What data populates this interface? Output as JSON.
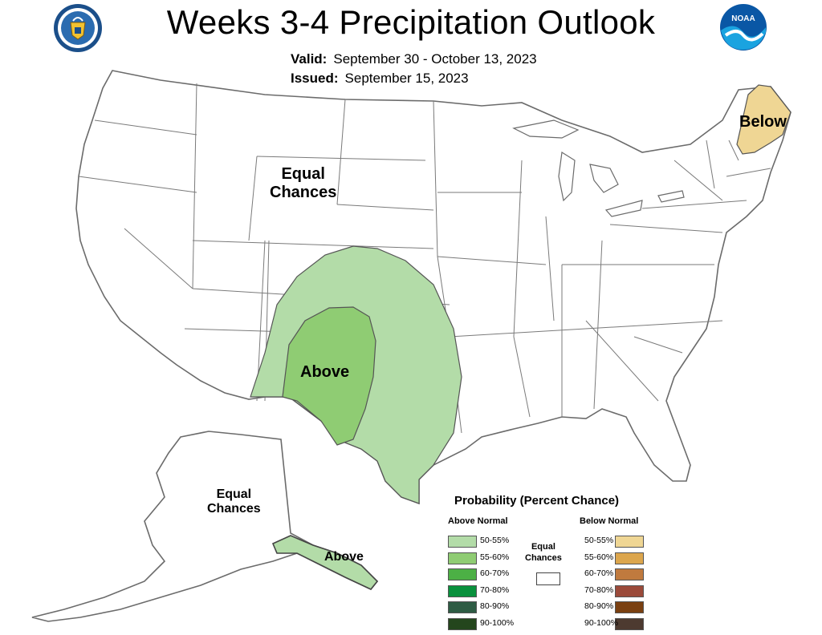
{
  "header": {
    "title": "Weeks 3-4 Precipitation Outlook",
    "valid_label": "Valid:",
    "valid_value": "September 30 - October 13, 2023",
    "issued_label": "Issued:",
    "issued_value": "September 15, 2023"
  },
  "logos": {
    "left": {
      "icon": "department-of-commerce-seal-icon"
    },
    "right": {
      "icon": "noaa-logo-icon",
      "text": "NOAA"
    }
  },
  "map": {
    "labels": {
      "conus_equal_line1": "Equal",
      "conus_equal_line2": "Chances",
      "conus_above": "Above",
      "northeast_below": "Below",
      "alaska_equal_line1": "Equal",
      "alaska_equal_line2": "Chances",
      "alaska_above": "Above"
    },
    "colors": {
      "above_50_55": "#b3dca8",
      "above_55_60": "#8fcc73",
      "below_50_55": "#efd694",
      "state_line": "#7a7a7a",
      "land": "#ffffff"
    }
  },
  "legend": {
    "title": "Probability (Percent Chance)",
    "above_header": "Above Normal",
    "below_header": "Below Normal",
    "equal_line1": "Equal",
    "equal_line2": "Chances",
    "above": [
      {
        "label": "50-55%",
        "color": "#b3dca8"
      },
      {
        "label": "55-60%",
        "color": "#8fcc73"
      },
      {
        "label": "60-70%",
        "color": "#4cb045"
      },
      {
        "label": "70-80%",
        "color": "#09913d"
      },
      {
        "label": "80-90%",
        "color": "#2e5c44"
      },
      {
        "label": "90-100%",
        "color": "#24461d"
      }
    ],
    "below": [
      {
        "label": "50-55%",
        "color": "#efd694"
      },
      {
        "label": "55-60%",
        "color": "#dca64d"
      },
      {
        "label": "60-70%",
        "color": "#c07a3e"
      },
      {
        "label": "70-80%",
        "color": "#9b4a3a"
      },
      {
        "label": "80-90%",
        "color": "#7a4011"
      },
      {
        "label": "90-100%",
        "color": "#4d3a30"
      }
    ]
  }
}
